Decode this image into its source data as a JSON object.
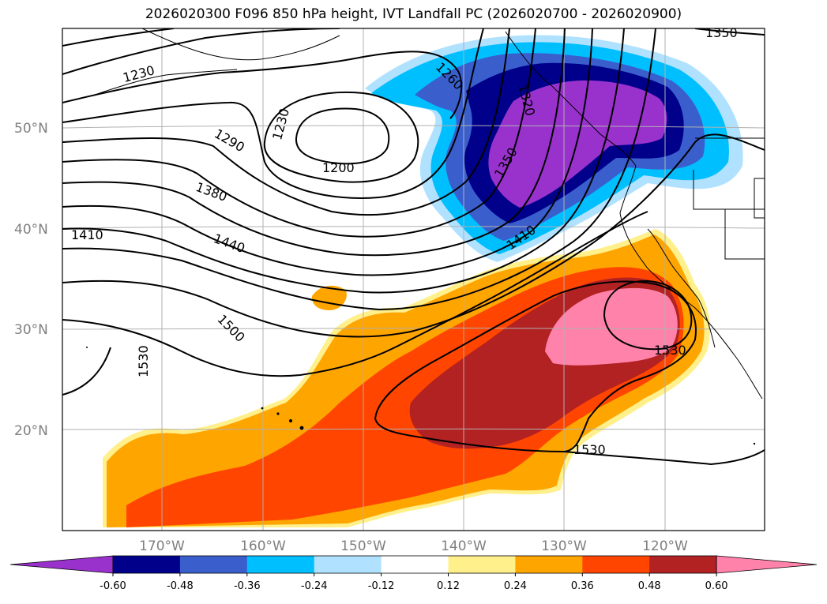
{
  "title": "2026020300 F096 850 hPa height, IVT Landfall PC (2026020700 - 2026020900)",
  "lat_labels": [
    "50°N",
    "40°N",
    "30°N",
    "20°N"
  ],
  "lon_labels": [
    "170°W",
    "160°W",
    "150°W",
    "140°W",
    "130°W",
    "120°W"
  ],
  "contour_labels": [
    "1230",
    "1260",
    "1320",
    "1230",
    "1290",
    "1200",
    "1350",
    "1380",
    "1410",
    "1440",
    "1410",
    "1500",
    "1530",
    "1530",
    "1530",
    "1350"
  ],
  "colorbar": {
    "ticks": [
      "-0.60",
      "-0.48",
      "-0.36",
      "-0.24",
      "-0.12",
      "0.12",
      "0.24",
      "0.36",
      "0.48",
      "0.60"
    ],
    "colors": [
      "#9932cc",
      "#00008b",
      "#3a5fcd",
      "#00bfff",
      "#b0e2ff",
      "#ffffff",
      "#fff08c",
      "#ffa500",
      "#ff4500",
      "#b22222",
      "#ff82ab"
    ]
  }
}
